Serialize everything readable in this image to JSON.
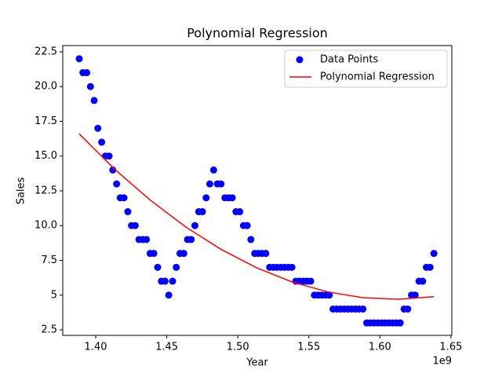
{
  "chart_data": {
    "type": "scatter",
    "title": "Polynomial Regression",
    "x_label": "Year",
    "y_label": "Sales",
    "x_offset_label": "1e9",
    "xlim": [
      1.3768,
      1.6506
    ],
    "ylim": [
      2.105,
      22.95
    ],
    "xticks": [
      {
        "value": 1.4,
        "label": "1.40"
      },
      {
        "value": 1.45,
        "label": "1.45"
      },
      {
        "value": 1.5,
        "label": "1.50"
      },
      {
        "value": 1.55,
        "label": "1.55"
      },
      {
        "value": 1.6,
        "label": "1.60"
      },
      {
        "value": 1.65,
        "label": "1.65"
      }
    ],
    "yticks": [
      2.5,
      5.0,
      7.5,
      {
        "value": 10,
        "label": "10.0"
      },
      12.5,
      {
        "value": 15,
        "label": "15.0"
      },
      17.5,
      {
        "value": 20,
        "label": "20.0"
      },
      22.5
    ],
    "grid": false,
    "legend": "upper right",
    "series": [
      {
        "name": "Data Points",
        "color": "#0000ff",
        "kind": "scatter",
        "x": [
          1.3884,
          1.391,
          1.3937,
          1.3963,
          1.3989,
          1.4015,
          1.4042,
          1.4068,
          1.4094,
          1.412,
          1.4147,
          1.4173,
          1.4199,
          1.4226,
          1.4252,
          1.4278,
          1.4304,
          1.4331,
          1.4357,
          1.4383,
          1.4409,
          1.4436,
          1.4462,
          1.4488,
          1.4514,
          1.4541,
          1.4567,
          1.4593,
          1.462,
          1.4646,
          1.4672,
          1.4698,
          1.4725,
          1.4751,
          1.4777,
          1.4803,
          1.483,
          1.4856,
          1.4882,
          1.4909,
          1.4935,
          1.4961,
          1.4987,
          1.5014,
          1.504,
          1.5066,
          1.5092,
          1.5119,
          1.5145,
          1.5171,
          1.5197,
          1.5224,
          1.525,
          1.5276,
          1.5303,
          1.5329,
          1.5355,
          1.5381,
          1.5408,
          1.5434,
          1.546,
          1.5486,
          1.5513,
          1.5539,
          1.5565,
          1.5592,
          1.5618,
          1.5644,
          1.567,
          1.5697,
          1.5723,
          1.5749,
          1.5775,
          1.5802,
          1.5828,
          1.5854,
          1.5881,
          1.5907,
          1.5933,
          1.5959,
          1.5986,
          1.6012,
          1.6038,
          1.6064,
          1.6091,
          1.6117,
          1.6143,
          1.617,
          1.6196,
          1.6222,
          1.6248,
          1.6275,
          1.6301,
          1.6327,
          1.6353,
          1.638
        ],
        "values": [
          22,
          21,
          21,
          20,
          19,
          17,
          16,
          15,
          15,
          14,
          13,
          12,
          12,
          11,
          10,
          10,
          9,
          9,
          9,
          8,
          8,
          7,
          6,
          6,
          5,
          6,
          7,
          8,
          8,
          9,
          9,
          10,
          11,
          11,
          12,
          13,
          14,
          13,
          13,
          12,
          12,
          12,
          11,
          11,
          10,
          10,
          9,
          8,
          8,
          8,
          8,
          7,
          7,
          7,
          7,
          7,
          7,
          7,
          6,
          6,
          6,
          6,
          6,
          5,
          5,
          5,
          5,
          5,
          4,
          4,
          4,
          4,
          4,
          4,
          4,
          4,
          4,
          3,
          3,
          3,
          3,
          3,
          3,
          3,
          3,
          3,
          3,
          4,
          4,
          5,
          5,
          6,
          6,
          7,
          7,
          8
        ]
      },
      {
        "name": "Polynomial Regression",
        "color": "#ff0000",
        "kind": "line",
        "x": [
          1.3884,
          1.4134,
          1.4384,
          1.4634,
          1.4884,
          1.5134,
          1.5384,
          1.5634,
          1.5884,
          1.6134,
          1.638
        ],
        "values": [
          16.6,
          14.05,
          11.83,
          9.9,
          8.28,
          6.96,
          5.94,
          5.23,
          4.81,
          4.7,
          4.89
        ]
      }
    ]
  }
}
